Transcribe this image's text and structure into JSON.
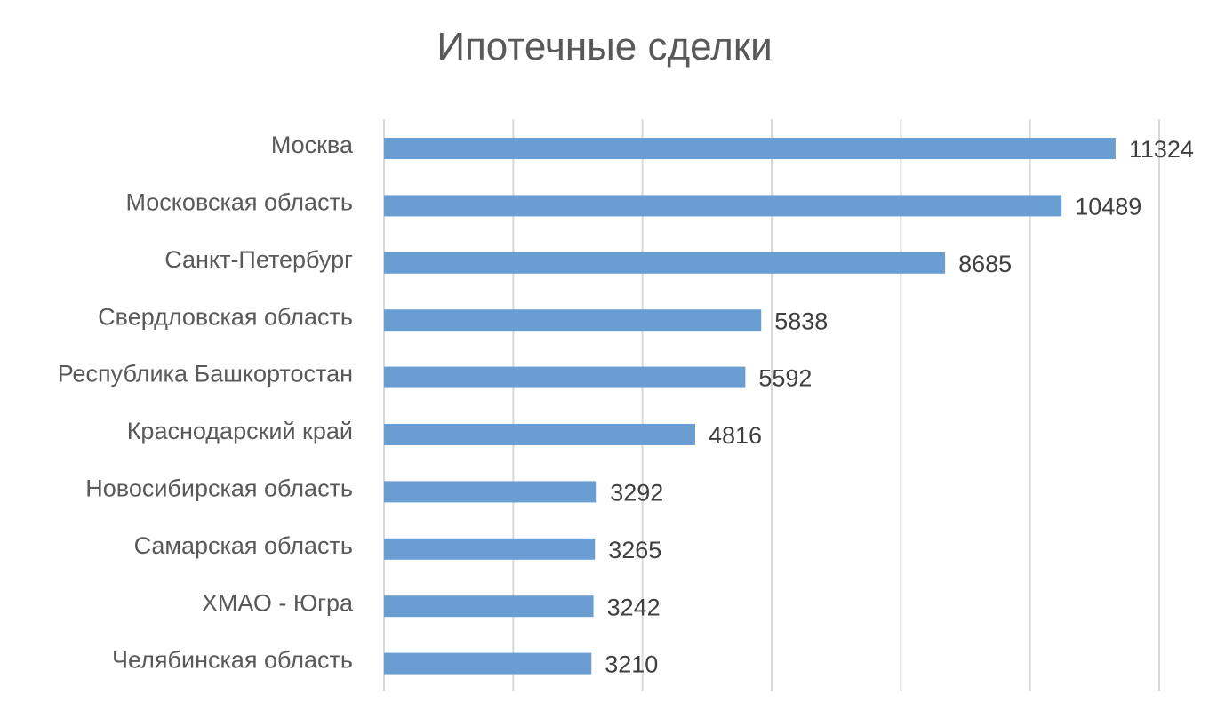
{
  "chart_data": {
    "type": "bar",
    "orientation": "horizontal",
    "title": "Ипотечные сделки",
    "categories": [
      "Москва",
      "Московская область",
      "Санкт-Петербург",
      "Свердловская область",
      "Республика Башкортостан",
      "Краснодарский край",
      "Новосибирская область",
      "Самарская область",
      "ХМАО - Югра",
      "Челябинская область"
    ],
    "values": [
      11324,
      10489,
      8685,
      5838,
      5592,
      4816,
      3292,
      3265,
      3242,
      3210
    ],
    "xlim": [
      0,
      12000
    ],
    "grid": true,
    "legend": "none",
    "bar_color": "#6A9ED3"
  }
}
